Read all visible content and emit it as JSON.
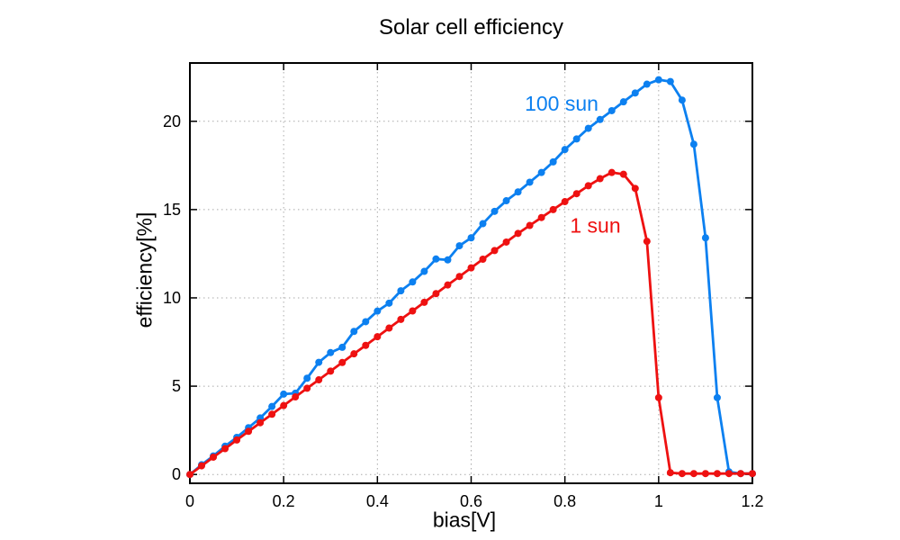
{
  "page": {
    "background": "#ffffff"
  },
  "chart_data": {
    "type": "line",
    "title": "Solar cell efficiency",
    "xlabel": "bias[V]",
    "ylabel": "efficiency[%]",
    "xlim": [
      0,
      1.2
    ],
    "ylim": [
      -0.5,
      23.3
    ],
    "x_ticks": [
      0,
      0.2,
      0.4,
      0.6,
      0.8,
      1,
      1.2
    ],
    "x_tick_labels": [
      "0",
      "0.2",
      "0.4",
      "0.6",
      "0.8",
      "1",
      "1.2"
    ],
    "y_ticks": [
      0,
      5,
      10,
      15,
      20
    ],
    "y_tick_labels": [
      "0",
      "5",
      "10",
      "15",
      "20"
    ],
    "grid": "dotted",
    "grid_color": "#aaaaaa",
    "border_color": "#000000",
    "x_start": 0,
    "x_step": 0.025,
    "series": [
      {
        "name": "100 sun",
        "color": "#0c80f0",
        "marker": "circle",
        "values": [
          0,
          0.55,
          1.05,
          1.6,
          2.1,
          2.65,
          3.2,
          3.85,
          4.55,
          4.6,
          5.45,
          6.35,
          6.9,
          7.2,
          8.1,
          8.65,
          9.25,
          9.7,
          10.4,
          10.9,
          11.5,
          12.2,
          12.15,
          12.95,
          13.4,
          14.2,
          14.9,
          15.5,
          16.0,
          16.55,
          17.1,
          17.7,
          18.4,
          19.0,
          19.6,
          20.1,
          20.6,
          21.1,
          21.6,
          22.1,
          22.35,
          22.25,
          21.2,
          18.7,
          13.4,
          4.35,
          0.15,
          0.05,
          0.05
        ]
      },
      {
        "name": "1 sun",
        "color": "#ee1111",
        "marker": "circle",
        "values": [
          0,
          0.49,
          0.98,
          1.46,
          1.95,
          2.44,
          2.93,
          3.41,
          3.9,
          4.39,
          4.88,
          5.36,
          5.85,
          6.34,
          6.83,
          7.31,
          7.8,
          8.29,
          8.78,
          9.26,
          9.75,
          10.24,
          10.73,
          11.21,
          11.7,
          12.19,
          12.68,
          13.16,
          13.65,
          14.1,
          14.55,
          15.0,
          15.45,
          15.9,
          16.35,
          16.75,
          17.1,
          17.0,
          16.2,
          13.2,
          4.35,
          0.1,
          0.05,
          0.05,
          0.05,
          0.05,
          0.05,
          0.05,
          0.05
        ]
      }
    ],
    "annotations": [
      {
        "text": "100 sun",
        "color": "#0c80f0",
        "x": 0.793,
        "y": 21.0
      },
      {
        "text": "1 sun",
        "color": "#ee1111",
        "x": 0.865,
        "y": 14.1
      }
    ],
    "legend_position": "inline-annotations"
  }
}
